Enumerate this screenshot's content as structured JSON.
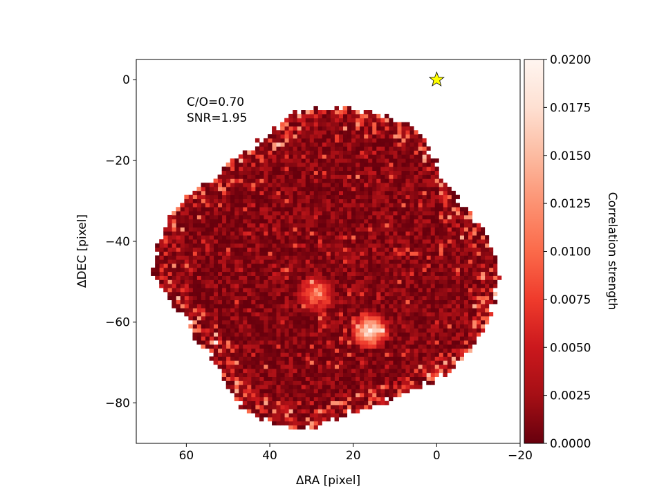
{
  "chart_data": {
    "type": "heatmap",
    "title": "",
    "xlabel": "ΔRA [pixel]",
    "ylabel": "ΔDEC [pixel]",
    "xlim": [
      72,
      -20
    ],
    "ylim": [
      -90,
      5
    ],
    "x_inverted": true,
    "xticks": [
      60,
      40,
      20,
      0,
      -20
    ],
    "yticks": [
      0,
      -20,
      -40,
      -60,
      -80
    ],
    "xtick_labels": [
      "60",
      "40",
      "20",
      "0",
      "−20"
    ],
    "ytick_labels": [
      "0",
      "−20",
      "−40",
      "−60",
      "−80"
    ],
    "colormap": "Reds_r",
    "colormap_stops": [
      "#67000d",
      "#a50f15",
      "#cb181d",
      "#ef3b2c",
      "#fb6a4a",
      "#fc9272",
      "#fcbba1",
      "#fee0d2",
      "#fff5f0"
    ],
    "clim": [
      0.0,
      0.02
    ],
    "colorbar": {
      "label": "Correlation strength",
      "ticks": [
        0.0,
        0.0025,
        0.005,
        0.0075,
        0.01,
        0.0125,
        0.015,
        0.0175,
        0.02
      ],
      "tick_labels": [
        "0.0000",
        "0.0025",
        "0.0050",
        "0.0075",
        "0.0100",
        "0.0125",
        "0.0150",
        "0.0175",
        "0.0200"
      ]
    },
    "annotations": [
      "C/O=0.70",
      "SNR=1.95"
    ],
    "star_marker": {
      "x": 0,
      "y": 0,
      "color": "#ffff00"
    },
    "footprint_center": {
      "x": 25,
      "y": -47
    },
    "footprint_radius_profile": [
      {
        "angle_deg": 0,
        "radius": 40
      },
      {
        "angle_deg": 20,
        "radius": 36
      },
      {
        "angle_deg": 40,
        "radius": 34
      },
      {
        "angle_deg": 60,
        "radius": 40
      },
      {
        "angle_deg": 80,
        "radius": 40
      },
      {
        "angle_deg": 100,
        "radius": 40
      },
      {
        "angle_deg": 120,
        "radius": 36
      },
      {
        "angle_deg": 140,
        "radius": 36
      },
      {
        "angle_deg": 160,
        "radius": 41
      },
      {
        "angle_deg": 180,
        "radius": 43
      },
      {
        "angle_deg": 200,
        "radius": 37
      },
      {
        "angle_deg": 220,
        "radius": 36
      },
      {
        "angle_deg": 240,
        "radius": 41
      },
      {
        "angle_deg": 260,
        "radius": 40
      },
      {
        "angle_deg": 280,
        "radius": 35
      },
      {
        "angle_deg": 300,
        "radius": 35
      },
      {
        "angle_deg": 320,
        "radius": 38
      },
      {
        "angle_deg": 340,
        "radius": 39
      },
      {
        "angle_deg": 360,
        "radius": 40
      }
    ],
    "typical_value": 0.002,
    "bright_spots": [
      {
        "x": 16,
        "y": -62,
        "value": 0.02,
        "size": 2.5
      },
      {
        "x": 29,
        "y": -53,
        "value": 0.012,
        "size": 2.5
      }
    ]
  }
}
